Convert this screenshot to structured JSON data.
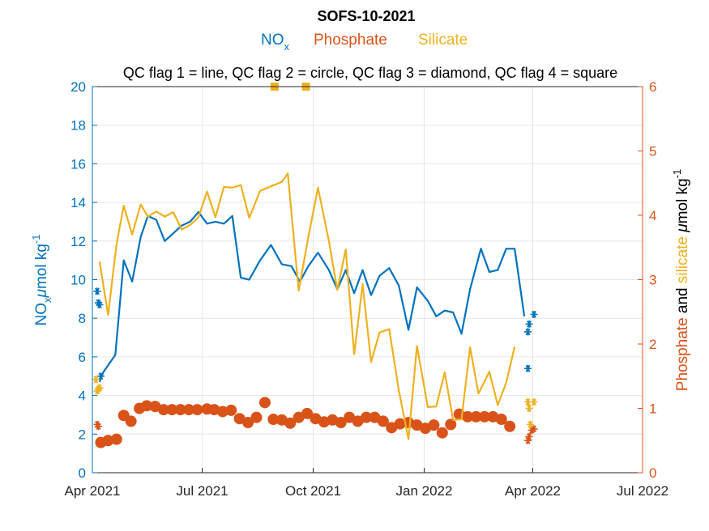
{
  "chart_data": {
    "type": "line",
    "title": "SOFS-10-2021",
    "qc_note": "QC flag 1 = line, QC flag 2 = circle, QC flag 3 = diamond, QC flag 4 = square",
    "x_ticks": [
      "Apr 2021",
      "Jul 2021",
      "Oct 2021",
      "Jan 2022",
      "Apr 2022",
      "Jul 2022"
    ],
    "x_range": [
      "2021-04-01",
      "2022-07-01"
    ],
    "y_left": {
      "label_main": "NO",
      "label_sub": "x",
      "label_unit_mu": "μ",
      "label_unit": "mol kg",
      "label_sup": "-1",
      "ticks": [
        "0",
        "2",
        "4",
        "6",
        "8",
        "10",
        "12",
        "14",
        "16",
        "18",
        "20"
      ],
      "range": [
        0,
        20
      ]
    },
    "y_right": {
      "label_part1": "Phosphate",
      "label_part2": " and ",
      "label_part3": "silicate",
      "label_unit_mu": " μ",
      "label_unit": "mol kg",
      "label_sup": "-1",
      "ticks": [
        "0",
        "1",
        "2",
        "3",
        "4",
        "5",
        "6"
      ],
      "range": [
        0,
        6
      ]
    },
    "legend": [
      {
        "name": "NO",
        "sub": "x",
        "color": "#0072BD"
      },
      {
        "name": "Phosphate",
        "color": "#D95319"
      },
      {
        "name": "Silicate",
        "color": "#EDB120"
      }
    ],
    "series": [
      {
        "name": "NOx",
        "axis": "left",
        "color": "#0072BD",
        "line": [
          [
            "2021-04-07",
            4.7
          ],
          [
            "2021-04-10",
            5.2
          ],
          [
            "2021-04-20",
            6.1
          ],
          [
            "2021-04-27",
            11.0
          ],
          [
            "2021-05-04",
            9.9
          ],
          [
            "2021-05-11",
            12.2
          ],
          [
            "2021-05-17",
            13.3
          ],
          [
            "2021-05-24",
            13.1
          ],
          [
            "2021-05-31",
            12.0
          ],
          [
            "2021-06-07",
            12.4
          ],
          [
            "2021-06-14",
            12.8
          ],
          [
            "2021-06-21",
            13.0
          ],
          [
            "2021-06-28",
            13.5
          ],
          [
            "2021-07-05",
            12.9
          ],
          [
            "2021-07-12",
            13.0
          ],
          [
            "2021-07-19",
            12.9
          ],
          [
            "2021-07-26",
            13.3
          ],
          [
            "2021-08-02",
            10.1
          ],
          [
            "2021-08-09",
            10.0
          ],
          [
            "2021-08-18",
            11.0
          ],
          [
            "2021-08-27",
            11.8
          ],
          [
            "2021-09-05",
            10.8
          ],
          [
            "2021-09-13",
            10.7
          ],
          [
            "2021-09-20",
            9.9
          ],
          [
            "2021-09-27",
            10.7
          ],
          [
            "2021-10-05",
            11.4
          ],
          [
            "2021-10-14",
            10.5
          ],
          [
            "2021-10-21",
            9.5
          ],
          [
            "2021-10-28",
            10.5
          ],
          [
            "2021-11-04",
            9.3
          ],
          [
            "2021-11-11",
            10.5
          ],
          [
            "2021-11-18",
            9.2
          ],
          [
            "2021-11-25",
            10.2
          ],
          [
            "2021-12-03",
            10.6
          ],
          [
            "2021-12-11",
            9.7
          ],
          [
            "2021-12-19",
            7.4
          ],
          [
            "2021-12-26",
            9.6
          ],
          [
            "2022-01-04",
            8.9
          ],
          [
            "2022-01-11",
            8.1
          ],
          [
            "2022-01-18",
            8.4
          ],
          [
            "2022-01-25",
            8.3
          ],
          [
            "2022-02-01",
            7.2
          ],
          [
            "2022-02-08",
            9.5
          ],
          [
            "2022-02-17",
            11.6
          ],
          [
            "2022-02-24",
            10.4
          ],
          [
            "2022-03-03",
            10.5
          ],
          [
            "2022-03-10",
            11.6
          ],
          [
            "2022-03-17",
            11.6
          ],
          [
            "2022-03-25",
            8.1
          ]
        ],
        "stars": [
          [
            "2021-04-05",
            9.4
          ],
          [
            "2021-04-06",
            8.8
          ],
          [
            "2021-04-07",
            8.7
          ],
          [
            "2021-04-08",
            5.0
          ],
          [
            "2022-03-28",
            5.4
          ],
          [
            "2022-03-28",
            7.3
          ],
          [
            "2022-03-29",
            7.7
          ],
          [
            "2022-04-02",
            8.2
          ]
        ]
      },
      {
        "name": "Phosphate",
        "axis": "right",
        "color": "#D95319",
        "circles": [
          [
            "2021-04-08",
            0.47
          ],
          [
            "2021-04-14",
            0.5
          ],
          [
            "2021-04-21",
            0.52
          ],
          [
            "2021-04-27",
            0.89
          ],
          [
            "2021-05-03",
            0.8
          ],
          [
            "2021-05-10",
            1.0
          ],
          [
            "2021-05-16",
            1.04
          ],
          [
            "2021-05-23",
            1.03
          ],
          [
            "2021-05-30",
            0.98
          ],
          [
            "2021-06-06",
            0.98
          ],
          [
            "2021-06-13",
            0.98
          ],
          [
            "2021-06-20",
            0.98
          ],
          [
            "2021-06-27",
            0.98
          ],
          [
            "2021-07-05",
            0.99
          ],
          [
            "2021-07-11",
            0.98
          ],
          [
            "2021-07-18",
            0.95
          ],
          [
            "2021-07-25",
            0.97
          ],
          [
            "2021-08-01",
            0.84
          ],
          [
            "2021-08-08",
            0.78
          ],
          [
            "2021-08-15",
            0.86
          ],
          [
            "2021-08-22",
            1.09
          ],
          [
            "2021-08-29",
            0.83
          ],
          [
            "2021-09-05",
            0.82
          ],
          [
            "2021-09-12",
            0.77
          ],
          [
            "2021-09-19",
            0.86
          ],
          [
            "2021-09-26",
            0.92
          ],
          [
            "2021-10-03",
            0.84
          ],
          [
            "2021-10-10",
            0.79
          ],
          [
            "2021-10-17",
            0.82
          ],
          [
            "2021-10-24",
            0.78
          ],
          [
            "2021-10-31",
            0.86
          ],
          [
            "2021-11-07",
            0.8
          ],
          [
            "2021-11-14",
            0.86
          ],
          [
            "2021-11-21",
            0.86
          ],
          [
            "2021-11-28",
            0.8
          ],
          [
            "2021-12-05",
            0.7
          ],
          [
            "2021-12-12",
            0.76
          ],
          [
            "2021-12-19",
            0.78
          ],
          [
            "2021-12-26",
            0.74
          ],
          [
            "2022-01-02",
            0.69
          ],
          [
            "2022-01-09",
            0.74
          ],
          [
            "2022-01-16",
            0.62
          ],
          [
            "2022-01-23",
            0.75
          ],
          [
            "2022-01-30",
            0.91
          ],
          [
            "2022-02-06",
            0.87
          ],
          [
            "2022-02-13",
            0.87
          ],
          [
            "2022-02-20",
            0.87
          ],
          [
            "2022-02-27",
            0.87
          ],
          [
            "2022-03-06",
            0.83
          ],
          [
            "2022-03-13",
            0.72
          ]
        ],
        "stars": [
          [
            "2021-04-05",
            0.75
          ],
          [
            "2021-04-06",
            0.72
          ],
          [
            "2022-03-28",
            0.5
          ],
          [
            "2022-03-29",
            0.56
          ],
          [
            "2022-03-31",
            0.66
          ],
          [
            "2022-04-02",
            0.68
          ]
        ]
      },
      {
        "name": "Silicate",
        "axis": "right",
        "color": "#EDB120",
        "line": [
          [
            "2021-04-07",
            3.28
          ],
          [
            "2021-04-14",
            2.45
          ],
          [
            "2021-04-21",
            3.55
          ],
          [
            "2021-04-27",
            4.15
          ],
          [
            "2021-05-04",
            3.7
          ],
          [
            "2021-05-11",
            4.17
          ],
          [
            "2021-05-17",
            3.98
          ],
          [
            "2021-05-24",
            4.06
          ],
          [
            "2021-05-31",
            3.98
          ],
          [
            "2021-06-07",
            4.05
          ],
          [
            "2021-06-14",
            3.78
          ],
          [
            "2021-06-21",
            3.85
          ],
          [
            "2021-06-28",
            3.97
          ],
          [
            "2021-07-05",
            4.37
          ],
          [
            "2021-07-12",
            3.97
          ],
          [
            "2021-07-19",
            4.44
          ],
          [
            "2021-07-26",
            4.43
          ],
          [
            "2021-08-02",
            4.47
          ],
          [
            "2021-08-09",
            3.96
          ],
          [
            "2021-08-18",
            4.38
          ],
          [
            "2021-08-27",
            4.45
          ],
          [
            "2021-09-05",
            4.52
          ],
          [
            "2021-09-10",
            4.65
          ],
          [
            "2021-09-19",
            2.83
          ],
          [
            "2021-09-27",
            3.66
          ],
          [
            "2021-10-05",
            4.43
          ],
          [
            "2021-10-14",
            3.6
          ],
          [
            "2021-10-21",
            2.84
          ],
          [
            "2021-10-28",
            3.47
          ],
          [
            "2021-11-04",
            1.84
          ],
          [
            "2021-11-11",
            2.93
          ],
          [
            "2021-11-18",
            1.72
          ],
          [
            "2021-11-25",
            2.18
          ],
          [
            "2021-12-03",
            2.23
          ],
          [
            "2021-12-11",
            1.28
          ],
          [
            "2021-12-19",
            0.52
          ],
          [
            "2021-12-26",
            1.97
          ],
          [
            "2022-01-04",
            1.02
          ],
          [
            "2022-01-11",
            1.03
          ],
          [
            "2022-01-18",
            1.56
          ],
          [
            "2022-01-25",
            0.82
          ],
          [
            "2022-02-01",
            0.83
          ],
          [
            "2022-02-08",
            1.95
          ],
          [
            "2022-02-15",
            1.23
          ],
          [
            "2022-02-24",
            1.57
          ],
          [
            "2022-03-03",
            1.05
          ],
          [
            "2022-03-10",
            1.4
          ],
          [
            "2022-03-17",
            1.96
          ]
        ],
        "squares": [
          [
            "2021-08-30",
            6.0
          ],
          [
            "2021-09-25",
            6.0
          ]
        ],
        "stars": [
          [
            "2021-04-04",
            1.45
          ],
          [
            "2021-04-05",
            1.27
          ],
          [
            "2021-04-06",
            1.3
          ],
          [
            "2021-04-07",
            1.32
          ],
          [
            "2022-03-28",
            1.1
          ],
          [
            "2022-03-29",
            1.0
          ],
          [
            "2022-03-30",
            0.75
          ],
          [
            "2022-04-02",
            1.1
          ]
        ]
      }
    ],
    "grid": true
  }
}
